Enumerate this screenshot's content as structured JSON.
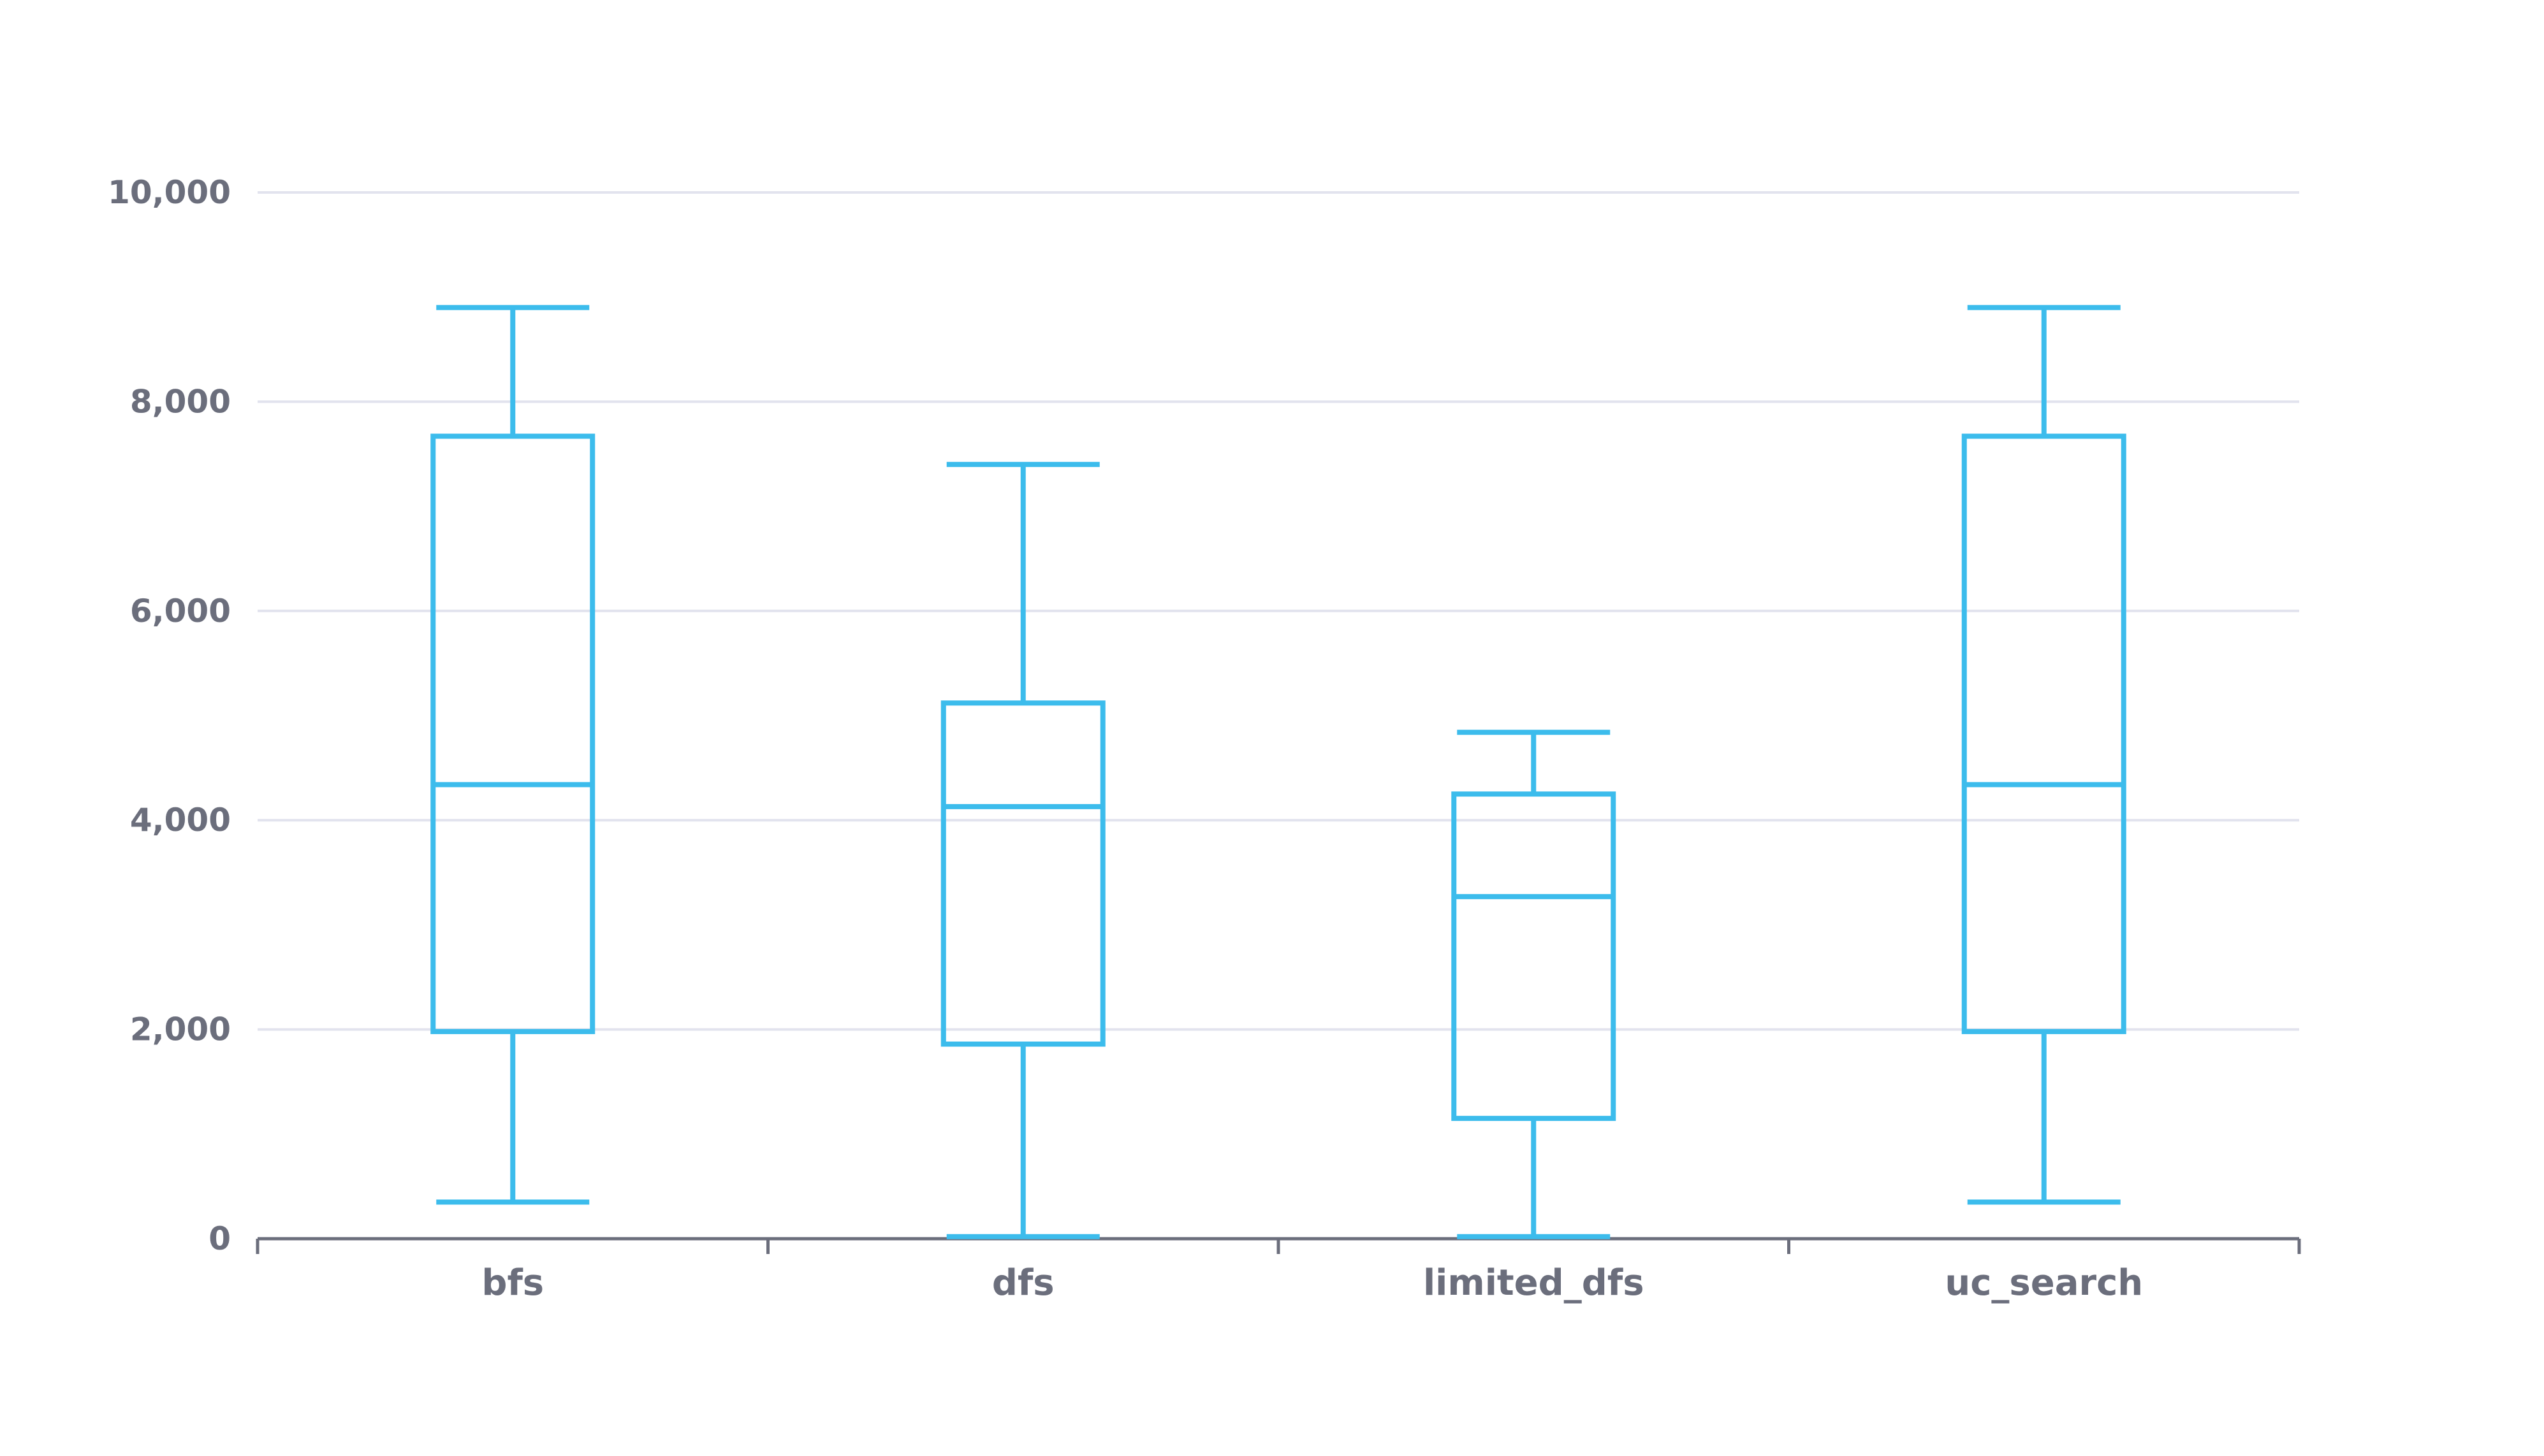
{
  "colors": {
    "box": "#3cbcec",
    "grid": "#e2e3ee",
    "axis": "#6b6e7c",
    "text": "#6b6e7c",
    "background": "#ffffff"
  },
  "chart_data": {
    "type": "boxplot",
    "title": "",
    "xlabel": "",
    "ylabel": "",
    "ylim": [
      0,
      10000
    ],
    "yticks": [
      0,
      2000,
      4000,
      6000,
      8000,
      10000
    ],
    "ytick_labels": [
      "0",
      "2,000",
      "4,000",
      "6,000",
      "8,000",
      "10,000"
    ],
    "grid": true,
    "categories": [
      "bfs",
      "dfs",
      "limited_dfs",
      "uc_search"
    ],
    "boxes": [
      {
        "category": "bfs",
        "min": 350,
        "q1": 1980,
        "median": 4340,
        "q3": 7670,
        "max": 8900
      },
      {
        "category": "dfs",
        "min": 20,
        "q1": 1860,
        "median": 4130,
        "q3": 5120,
        "max": 7400
      },
      {
        "category": "limited_dfs",
        "min": 20,
        "q1": 1150,
        "median": 3270,
        "q3": 4250,
        "max": 4840
      },
      {
        "category": "uc_search",
        "min": 350,
        "q1": 1980,
        "median": 4340,
        "q3": 7670,
        "max": 8900
      }
    ]
  }
}
